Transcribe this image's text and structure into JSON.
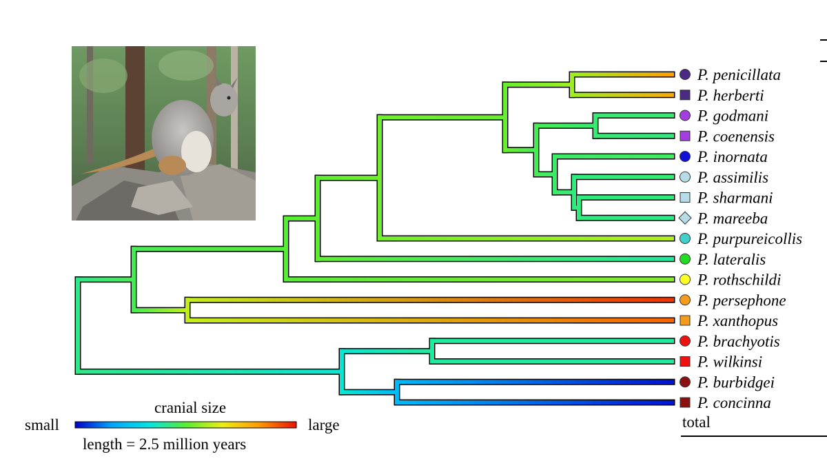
{
  "taxa": [
    {
      "label": "P. penicillata",
      "marker": "circle",
      "color": "#4b2a86"
    },
    {
      "label": "P. herberti",
      "marker": "square",
      "color": "#4b2a86"
    },
    {
      "label": "P. godmani",
      "marker": "circle",
      "color": "#a23de0"
    },
    {
      "label": "P. coenensis",
      "marker": "square",
      "color": "#a23de0"
    },
    {
      "label": "P. inornata",
      "marker": "circle",
      "color": "#1010d8"
    },
    {
      "label": "P. assimilis",
      "marker": "circle",
      "color": "#b7dbe7"
    },
    {
      "label": "P. sharmani",
      "marker": "square",
      "color": "#b7dbe7"
    },
    {
      "label": "P. mareeba",
      "marker": "diamond",
      "color": "#b7dbe7"
    },
    {
      "label": "P. purpureicollis",
      "marker": "circle",
      "color": "#3fd0cc"
    },
    {
      "label": "P. lateralis",
      "marker": "circle",
      "color": "#22dd22"
    },
    {
      "label": "P. rothschildi",
      "marker": "circle",
      "color": "#ffff22"
    },
    {
      "label": "P. persephone",
      "marker": "circle",
      "color": "#f59b1a"
    },
    {
      "label": "P. xanthopus",
      "marker": "square",
      "color": "#f59b1a"
    },
    {
      "label": "P. brachyotis",
      "marker": "circle",
      "color": "#ee1111"
    },
    {
      "label": "P. wilkinsi",
      "marker": "square",
      "color": "#ee1111"
    },
    {
      "label": "P. burbidgei",
      "marker": "circle",
      "color": "#8b1010"
    },
    {
      "label": "P. concinna",
      "marker": "square",
      "color": "#8b1010"
    }
  ],
  "total_label": "total",
  "legend": {
    "title": "cranial size",
    "low_label": "small",
    "high_label": "large",
    "scale_caption": "length = 2.5 million years",
    "gradient": [
      "#0000cc",
      "#00a6ff",
      "#00e5e5",
      "#55ee33",
      "#eeee11",
      "#ff9900",
      "#ee1100"
    ]
  },
  "photo": {
    "subject": "rock-wallaby on rocks"
  }
}
